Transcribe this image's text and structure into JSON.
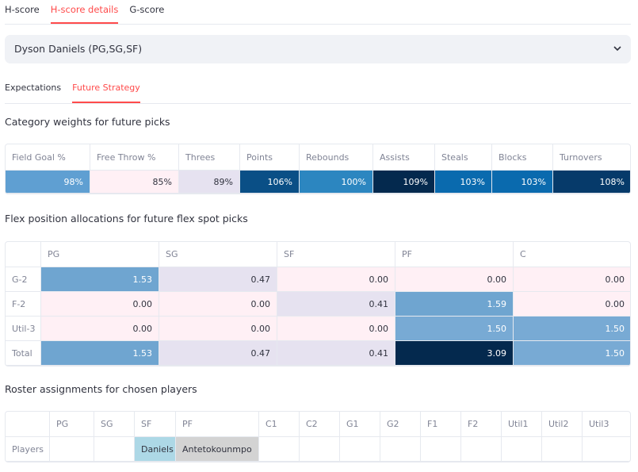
{
  "tabs": [
    "H-score",
    "H-score details",
    "G-score"
  ],
  "player_select": "Dyson Daniels (PG,SG,SF)",
  "subtabs": [
    "Expectations",
    "Future Strategy"
  ],
  "weights": {
    "title": "Category weights for future picks",
    "columns": [
      "Field Goal %",
      "Free Throw %",
      "Threes",
      "Points",
      "Rebounds",
      "Assists",
      "Steals",
      "Blocks",
      "Turnovers"
    ],
    "values": [
      "98%",
      "85%",
      "89%",
      "106%",
      "100%",
      "109%",
      "103%",
      "103%",
      "108%"
    ],
    "colors": [
      "#5f9fd2",
      "#fff0f5",
      "#e6e2f0",
      "#0a4f86",
      "#2c86c0",
      "#04294e",
      "#0a6aae",
      "#0a6aae",
      "#063a6a"
    ]
  },
  "flex": {
    "title": "Flex position allocations for future flex spot picks",
    "columns": [
      "PG",
      "SG",
      "SF",
      "PF",
      "C"
    ],
    "rows": [
      {
        "label": "G-2",
        "values": [
          "1.53",
          "0.47",
          "0.00",
          "0.00",
          "0.00"
        ],
        "colors": [
          "#6fa5d0",
          "#e6e2f0",
          "#fff0f5",
          "#fff0f5",
          "#fff0f5"
        ]
      },
      {
        "label": "F-2",
        "values": [
          "0.00",
          "0.00",
          "0.41",
          "1.59",
          "0.00"
        ],
        "colors": [
          "#fff0f5",
          "#fff0f5",
          "#e6e2f0",
          "#6fa5d0",
          "#fff0f5"
        ]
      },
      {
        "label": "Util-3",
        "values": [
          "0.00",
          "0.00",
          "0.00",
          "1.50",
          "1.50"
        ],
        "colors": [
          "#fff0f5",
          "#fff0f5",
          "#fff0f5",
          "#78aad4",
          "#78aad4"
        ]
      },
      {
        "label": "Total",
        "values": [
          "1.53",
          "0.47",
          "0.41",
          "3.09",
          "1.50"
        ],
        "colors": [
          "#6fa5d0",
          "#e6e2f0",
          "#e6e2f0",
          "#04294e",
          "#78aad4"
        ]
      }
    ]
  },
  "roster": {
    "title": "Roster assignments for chosen players",
    "columns": [
      "PG",
      "SG",
      "SF",
      "PF",
      "C1",
      "C2",
      "G1",
      "G2",
      "F1",
      "F2",
      "Util1",
      "Util2",
      "Util3"
    ],
    "rows": [
      {
        "label": "Players",
        "values": [
          null,
          null,
          "Daniels",
          "Antetokounmpo",
          null,
          null,
          null,
          null,
          null,
          null,
          null,
          null,
          null
        ],
        "colors": [
          null,
          null,
          "#add8e6",
          "#d3d3d3",
          null,
          null,
          null,
          null,
          null,
          null,
          null,
          null,
          null
        ]
      }
    ]
  }
}
